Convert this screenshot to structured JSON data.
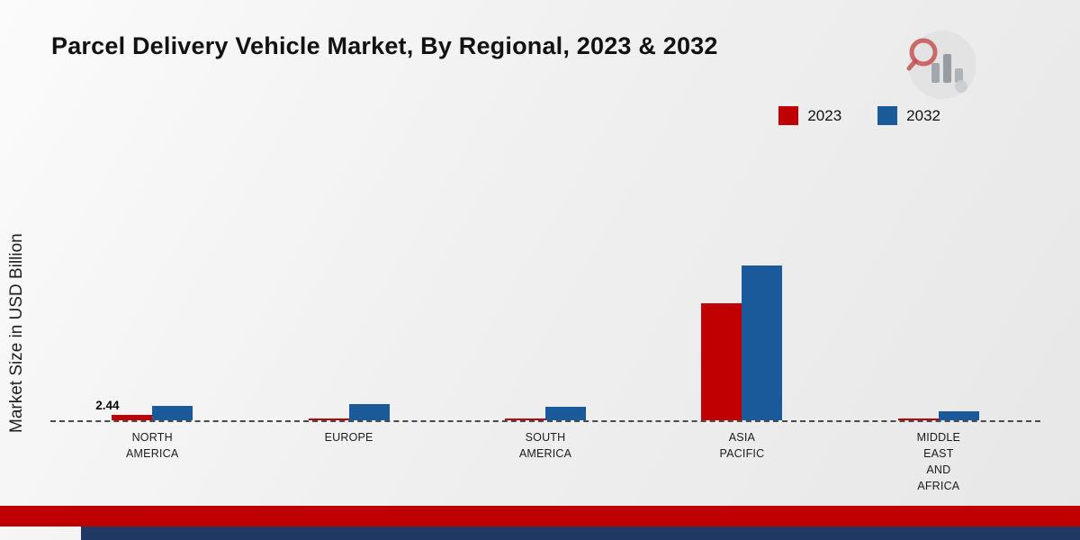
{
  "title": "Parcel Delivery Vehicle Market, By Regional, 2023 & 2032",
  "ylabel": "Market Size in USD Billion",
  "legend": {
    "items": [
      {
        "label": "2023",
        "color": "#c00000"
      },
      {
        "label": "2032",
        "color": "#1a5a9a"
      }
    ]
  },
  "colors": {
    "series_2023": "#c00000",
    "series_2032": "#1a5a9a",
    "footer_red": "#c00000",
    "footer_navy": "#203864",
    "baseline": "#4a4a4a"
  },
  "icons": {
    "brand_logo": "analytics-magnifier-logo"
  },
  "chart_data": {
    "type": "bar",
    "title": "Parcel Delivery Vehicle Market, By Regional, 2023 & 2032",
    "xlabel": "",
    "ylabel": "Market Size in USD Billion",
    "categories": [
      "North America",
      "Europe",
      "South America",
      "Asia Pacific",
      "Middle East and Africa"
    ],
    "category_labels": [
      "NORTH\nAMERICA",
      "EUROPE",
      "SOUTH\nAMERICA",
      "ASIA\nPACIFIC",
      "MIDDLE\nEAST\nAND\nAFRICA"
    ],
    "series": [
      {
        "name": "2023",
        "color": "#c00000",
        "values": [
          2.44,
          0.9,
          0.8,
          50,
          0.5
        ]
      },
      {
        "name": "2032",
        "color": "#1a5a9a",
        "values": [
          6,
          7,
          5.8,
          66,
          4
        ]
      }
    ],
    "ylim": [
      0,
      115
    ],
    "grid": false,
    "legend_position": "top-right",
    "baseline_style": "dashed",
    "annotations": [
      {
        "text": "2.44",
        "category": "North America",
        "category_index": 0,
        "series": "2023",
        "series_index": 0
      }
    ]
  }
}
